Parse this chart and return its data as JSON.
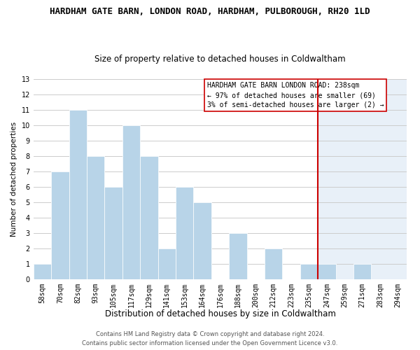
{
  "title": "HARDHAM GATE BARN, LONDON ROAD, HARDHAM, PULBOROUGH, RH20 1LD",
  "subtitle": "Size of property relative to detached houses in Coldwaltham",
  "xlabel": "Distribution of detached houses by size in Coldwaltham",
  "ylabel": "Number of detached properties",
  "bin_labels": [
    "58sqm",
    "70sqm",
    "82sqm",
    "93sqm",
    "105sqm",
    "117sqm",
    "129sqm",
    "141sqm",
    "153sqm",
    "164sqm",
    "176sqm",
    "188sqm",
    "200sqm",
    "212sqm",
    "223sqm",
    "235sqm",
    "247sqm",
    "259sqm",
    "271sqm",
    "283sqm",
    "294sqm"
  ],
  "bin_counts": [
    1,
    7,
    11,
    8,
    6,
    10,
    8,
    2,
    6,
    5,
    0,
    3,
    0,
    2,
    0,
    1,
    1,
    0,
    1,
    0,
    0
  ],
  "bar_color": "#b8d4e8",
  "bar_edge_color": "#ffffff",
  "grid_color": "#cccccc",
  "vline_x_index": 15.5,
  "vline_color": "#cc0000",
  "highlight_color": "#e8f0f8",
  "annotation_title": "HARDHAM GATE BARN LONDON ROAD: 238sqm",
  "annotation_line1": "← 97% of detached houses are smaller (69)",
  "annotation_line2": "3% of semi-detached houses are larger (2) →",
  "annotation_box_color": "#ffffff",
  "annotation_box_edge": "#cc0000",
  "footer1": "Contains HM Land Registry data © Crown copyright and database right 2024.",
  "footer2": "Contains public sector information licensed under the Open Government Licence v3.0.",
  "ylim": [
    0,
    13
  ],
  "yticks": [
    0,
    1,
    2,
    3,
    4,
    5,
    6,
    7,
    8,
    9,
    10,
    11,
    12,
    13
  ],
  "title_fontsize": 9,
  "subtitle_fontsize": 8.5,
  "xlabel_fontsize": 8.5,
  "ylabel_fontsize": 7.5,
  "tick_fontsize": 7,
  "annotation_fontsize": 7,
  "footer_fontsize": 6
}
